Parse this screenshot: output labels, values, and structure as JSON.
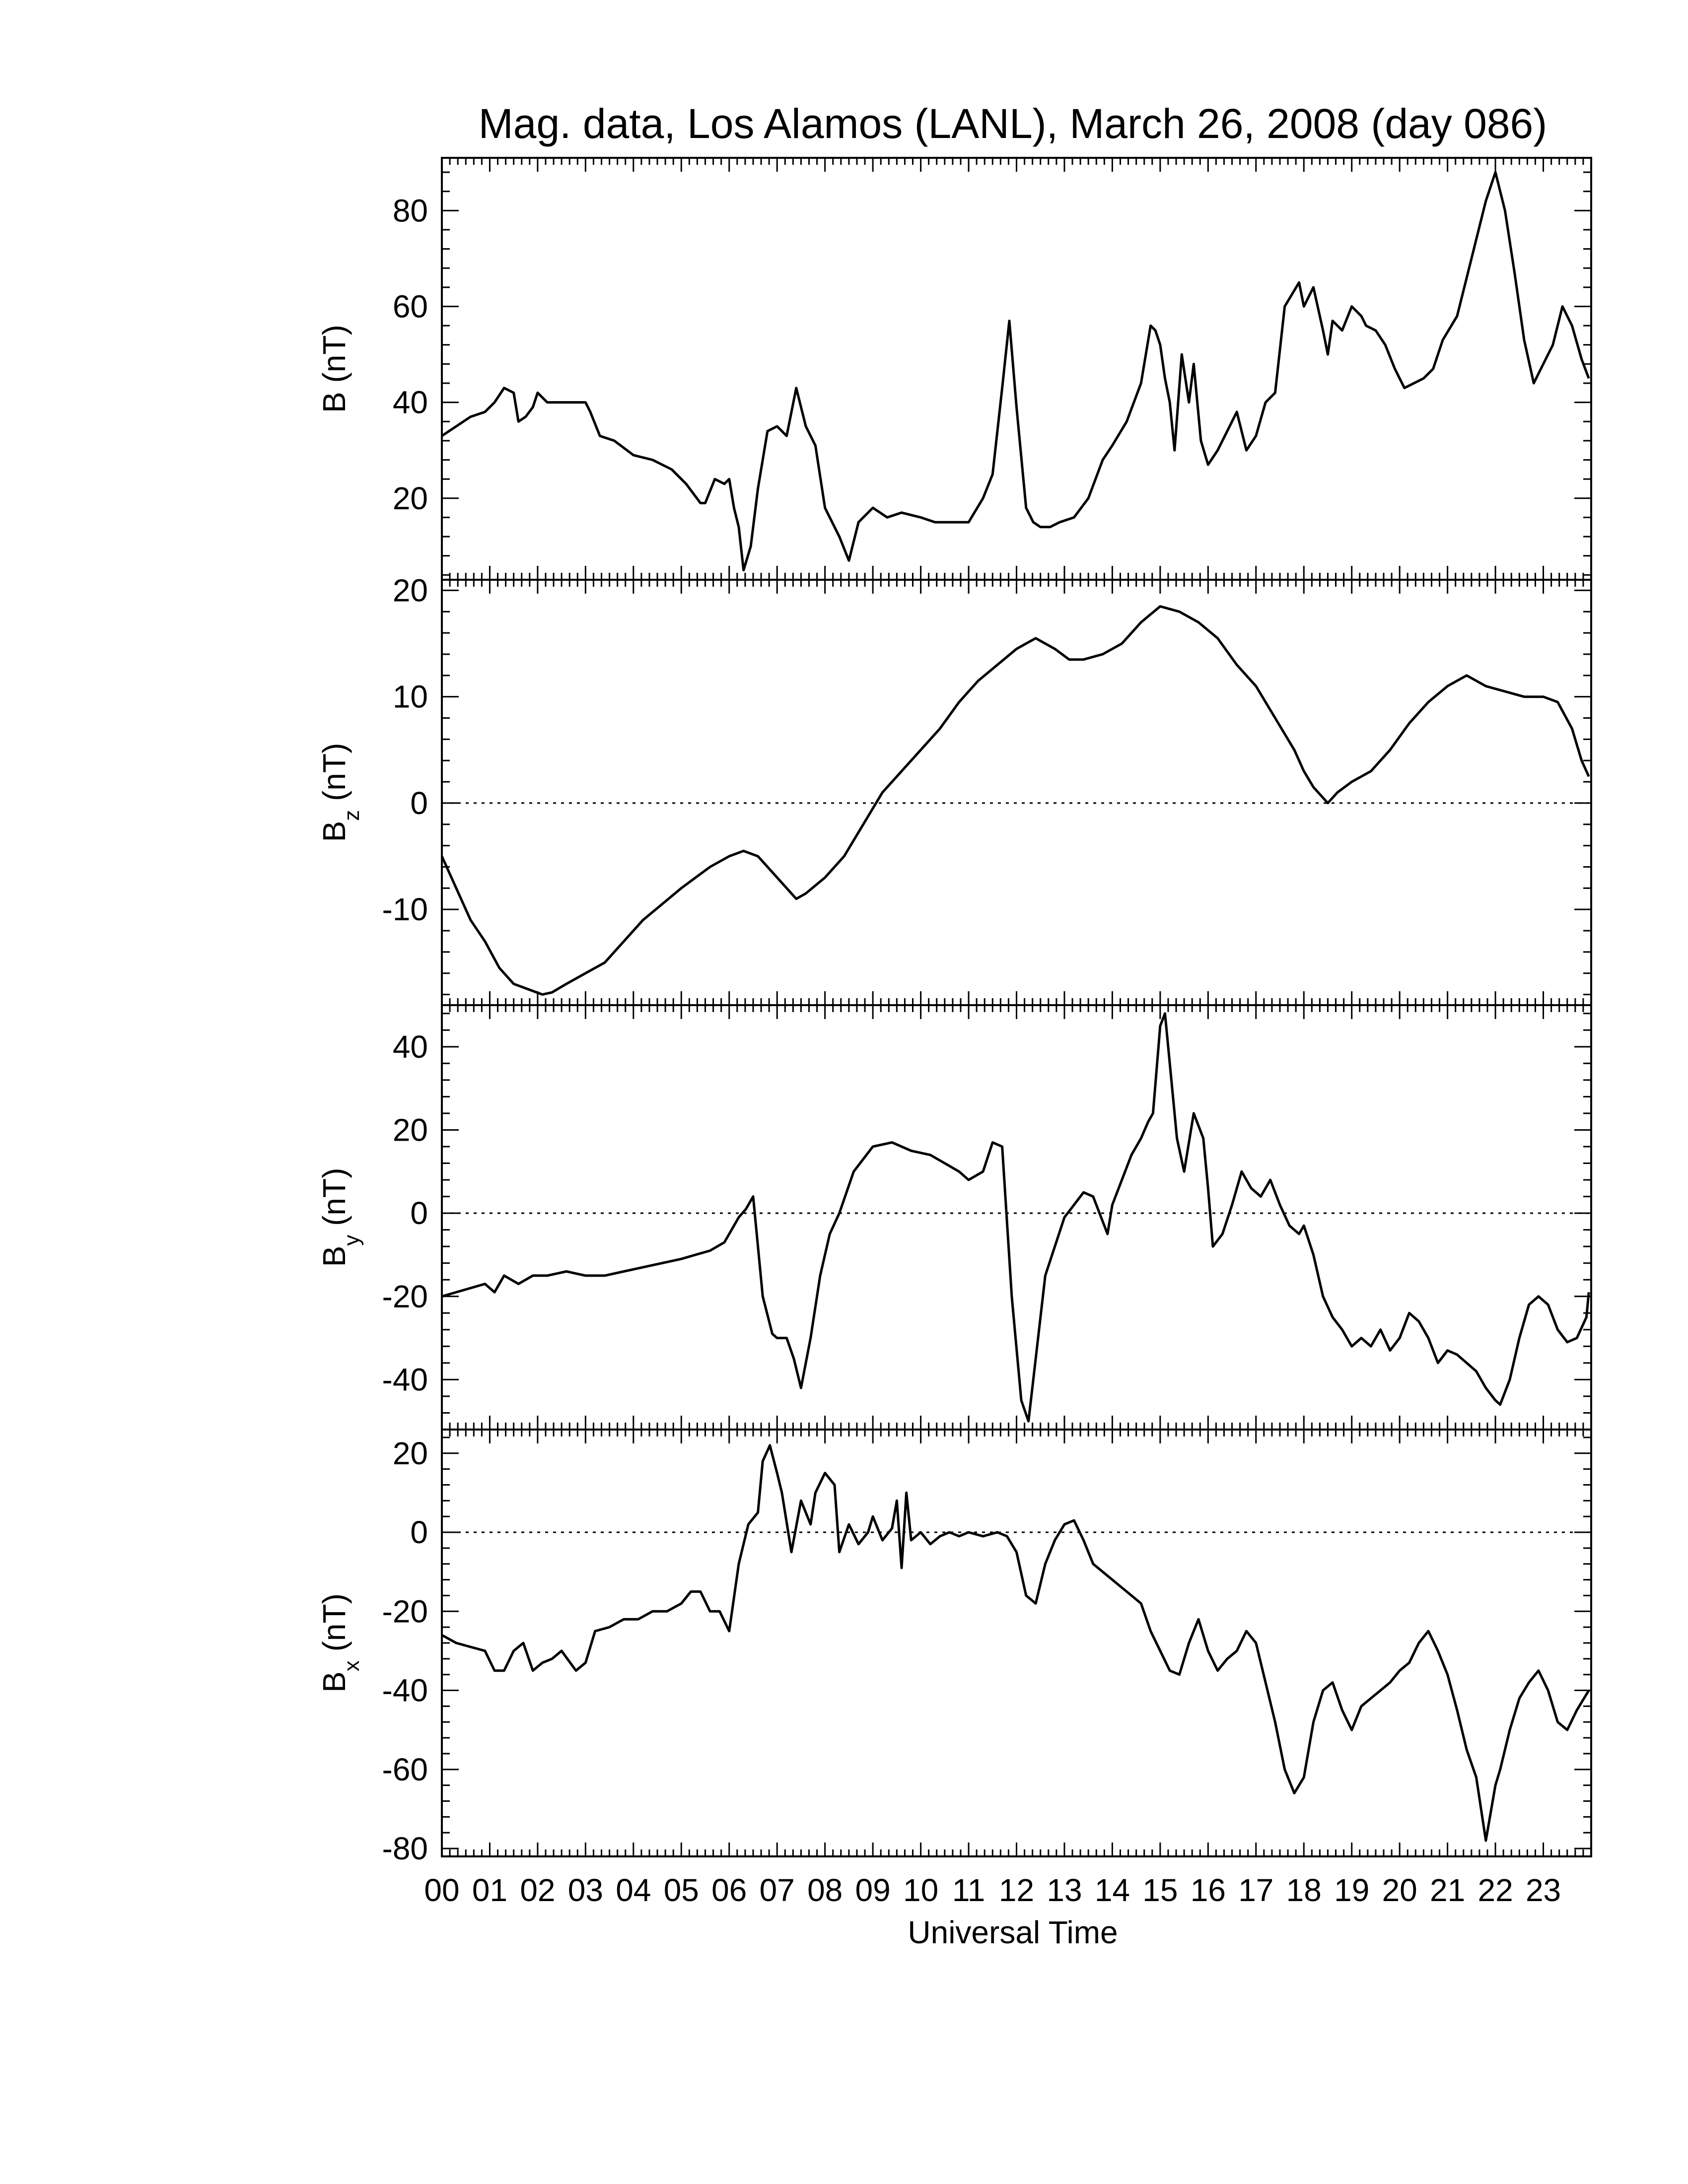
{
  "chart_data": {
    "type": "line",
    "title": "Mag. data, Los Alamos (LANL), March 26, 2008 (day 086)",
    "xlabel": "Universal Time",
    "x_tick_labels": [
      "00",
      "01",
      "02",
      "03",
      "04",
      "05",
      "06",
      "07",
      "08",
      "09",
      "10",
      "11",
      "12",
      "13",
      "14",
      "15",
      "16",
      "17",
      "18",
      "19",
      "20",
      "21",
      "22",
      "23"
    ],
    "xlim": [
      0,
      24
    ],
    "grid": false,
    "panels": [
      {
        "id": "B",
        "ylabel_main": "B (nT)",
        "ylabel_sub": "",
        "ylim": [
          3,
          91
        ],
        "yticks": [
          20,
          40,
          60,
          80
        ],
        "ytick_labels": [
          "20",
          "40",
          "60",
          "80"
        ],
        "zero_line": false,
        "series": [
          {
            "x": [
              0.0,
              0.3,
              0.6,
              0.9,
              1.1,
              1.3,
              1.5,
              1.6,
              1.75,
              1.9,
              2.0,
              2.2,
              2.5,
              2.8,
              3.0,
              3.1,
              3.3,
              3.6,
              4.0,
              4.4,
              4.8,
              5.1,
              5.4,
              5.5,
              5.7,
              5.9,
              6.0,
              6.1,
              6.2,
              6.3,
              6.45,
              6.6,
              6.8,
              7.0,
              7.2,
              7.4,
              7.6,
              7.8,
              8.0,
              8.3,
              8.5,
              8.7,
              9.0,
              9.3,
              9.6,
              10.0,
              10.3,
              10.6,
              11.0,
              11.3,
              11.5,
              11.7,
              11.85,
              12.0,
              12.2,
              12.35,
              12.5,
              12.7,
              12.9,
              13.2,
              13.5,
              13.8,
              14.0,
              14.3,
              14.6,
              14.8,
              14.9,
              15.0,
              15.1,
              15.2,
              15.3,
              15.45,
              15.6,
              15.7,
              15.85,
              16.0,
              16.2,
              16.4,
              16.6,
              16.8,
              17.0,
              17.2,
              17.4,
              17.6,
              17.9,
              18.0,
              18.2,
              18.4,
              18.5,
              18.6,
              18.8,
              19.0,
              19.2,
              19.3,
              19.5,
              19.7,
              19.9,
              20.1,
              20.3,
              20.5,
              20.7,
              20.9,
              21.2,
              21.5,
              21.8,
              22.0,
              22.2,
              22.4,
              22.6,
              22.8,
              23.0,
              23.2,
              23.4,
              23.6,
              23.8,
              23.95
            ],
            "y": [
              33,
              35,
              37,
              38,
              40,
              43,
              42,
              36,
              37,
              39,
              42,
              40,
              40,
              40,
              40,
              38,
              33,
              32,
              29,
              28,
              26,
              23,
              19,
              19,
              24,
              23,
              24,
              18,
              14,
              5,
              10,
              22,
              34,
              35,
              33,
              43,
              35,
              31,
              18,
              12,
              7,
              15,
              18,
              16,
              17,
              16,
              15,
              15,
              15,
              20,
              25,
              43,
              57,
              39,
              18,
              15,
              14,
              14,
              15,
              16,
              20,
              28,
              31,
              36,
              44,
              56,
              55,
              52,
              45,
              40,
              30,
              50,
              40,
              48,
              32,
              27,
              30,
              34,
              38,
              30,
              33,
              40,
              42,
              60,
              65,
              60,
              64,
              55,
              50,
              57,
              55,
              60,
              58,
              56,
              55,
              52,
              47,
              43,
              44,
              45,
              47,
              53,
              58,
              70,
              82,
              88,
              80,
              67,
              53,
              44,
              48,
              52,
              60,
              56,
              49,
              45
            ],
            "name": ""
          }
        ]
      },
      {
        "id": "Bz",
        "ylabel_main": "B",
        "ylabel_sub": "z",
        "ylabel_unit": "(nT)",
        "ylim": [
          -19,
          21
        ],
        "yticks": [
          -10,
          0,
          10,
          20
        ],
        "ytick_labels": [
          "-10",
          "0",
          "10",
          "20"
        ],
        "zero_line": true,
        "series": [
          {
            "x": [
              0.0,
              0.3,
              0.6,
              0.9,
              1.2,
              1.5,
              1.8,
              2.1,
              2.3,
              2.6,
              3.0,
              3.4,
              3.8,
              4.2,
              4.6,
              5.0,
              5.3,
              5.6,
              6.0,
              6.3,
              6.6,
              6.9,
              7.2,
              7.4,
              7.6,
              8.0,
              8.4,
              8.8,
              9.2,
              9.6,
              10.0,
              10.4,
              10.8,
              11.2,
              11.6,
              12.0,
              12.4,
              12.8,
              13.1,
              13.4,
              13.8,
              14.2,
              14.6,
              15.0,
              15.4,
              15.8,
              16.2,
              16.6,
              17.0,
              17.4,
              17.8,
              18.0,
              18.2,
              18.5,
              18.7,
              19.0,
              19.4,
              19.8,
              20.2,
              20.6,
              21.0,
              21.4,
              21.8,
              22.2,
              22.6,
              23.0,
              23.3,
              23.6,
              23.8,
              23.95
            ],
            "y": [
              -5,
              -8,
              -11,
              -13,
              -15.5,
              -17,
              -17.5,
              -18,
              -17.8,
              -17,
              -16,
              -15,
              -13,
              -11,
              -9.5,
              -8,
              -7,
              -6,
              -5,
              -4.5,
              -5,
              -6.5,
              -8,
              -9,
              -8.5,
              -7,
              -5,
              -2,
              1,
              3,
              5,
              7,
              9.5,
              11.5,
              13,
              14.5,
              15.5,
              14.5,
              13.5,
              13.5,
              14,
              15,
              17,
              18.5,
              18,
              17,
              15.5,
              13,
              11,
              8,
              5,
              3,
              1.5,
              0,
              1,
              2,
              3,
              5,
              7.5,
              9.5,
              11,
              12,
              11,
              10.5,
              10,
              10,
              9.5,
              7,
              4,
              2.5
            ],
            "name": ""
          }
        ]
      },
      {
        "id": "By",
        "ylabel_main": "B",
        "ylabel_sub": "y",
        "ylabel_unit": "(nT)",
        "ylim": [
          -52,
          50
        ],
        "yticks": [
          -40,
          -20,
          0,
          20,
          40
        ],
        "ytick_labels": [
          "-40",
          "-20",
          "0",
          "20",
          "40"
        ],
        "zero_line": true,
        "series": [
          {
            "x": [
              0.0,
              0.3,
              0.6,
              0.9,
              1.1,
              1.3,
              1.6,
              1.9,
              2.2,
              2.6,
              3.0,
              3.4,
              3.8,
              4.2,
              4.6,
              5.0,
              5.3,
              5.6,
              5.9,
              6.0,
              6.2,
              6.35,
              6.5,
              6.7,
              6.9,
              7.0,
              7.2,
              7.35,
              7.5,
              7.7,
              7.9,
              8.1,
              8.3,
              8.6,
              9.0,
              9.4,
              9.8,
              10.2,
              10.5,
              10.8,
              11.0,
              11.3,
              11.5,
              11.7,
              11.9,
              12.1,
              12.25,
              12.4,
              12.6,
              12.8,
              13.0,
              13.2,
              13.4,
              13.6,
              13.8,
              13.9,
              14.0,
              14.2,
              14.4,
              14.6,
              14.75,
              14.85,
              15.0,
              15.1,
              15.25,
              15.35,
              15.5,
              15.7,
              15.9,
              16.0,
              16.1,
              16.3,
              16.5,
              16.7,
              16.9,
              17.1,
              17.3,
              17.5,
              17.7,
              17.9,
              18.0,
              18.2,
              18.4,
              18.6,
              18.8,
              19.0,
              19.2,
              19.4,
              19.6,
              19.8,
              20.0,
              20.2,
              20.4,
              20.6,
              20.8,
              21.0,
              21.2,
              21.4,
              21.6,
              21.8,
              22.0,
              22.1,
              22.3,
              22.5,
              22.7,
              22.9,
              23.1,
              23.3,
              23.5,
              23.7,
              23.9,
              23.95
            ],
            "y": [
              -20,
              -19,
              -18,
              -17,
              -19,
              -15,
              -17,
              -15,
              -15,
              -14,
              -15,
              -15,
              -14,
              -13,
              -12,
              -11,
              -10,
              -9,
              -7,
              -5,
              -1,
              1,
              4,
              -20,
              -29,
              -30,
              -30,
              -35,
              -42,
              -30,
              -15,
              -5,
              0,
              10,
              16,
              17,
              15,
              14,
              12,
              10,
              8,
              10,
              17,
              16,
              -20,
              -45,
              -50,
              -35,
              -15,
              -8,
              -1,
              2,
              5,
              4,
              -2,
              -5,
              2,
              8,
              14,
              18,
              22,
              24,
              45,
              48,
              30,
              18,
              10,
              24,
              18,
              6,
              -8,
              -5,
              2,
              10,
              6,
              4,
              8,
              2,
              -3,
              -5,
              -3,
              -10,
              -20,
              -25,
              -28,
              -32,
              -30,
              -32,
              -28,
              -33,
              -30,
              -24,
              -26,
              -30,
              -36,
              -33,
              -34,
              -36,
              -38,
              -42,
              -45,
              -46,
              -40,
              -30,
              -22,
              -20,
              -22,
              -28,
              -31,
              -30,
              -25,
              -19
            ],
            "name": ""
          }
        ]
      },
      {
        "id": "Bx",
        "ylabel_main": "B",
        "ylabel_sub": "x",
        "ylabel_unit": "(nT)",
        "ylim": [
          -82,
          26
        ],
        "yticks": [
          -80,
          -60,
          -40,
          -20,
          0,
          20
        ],
        "ytick_labels": [
          "-80",
          "-60",
          "-40",
          "-20",
          "0",
          "20"
        ],
        "zero_line": true,
        "series": [
          {
            "x": [
              0.0,
              0.3,
              0.6,
              0.9,
              1.1,
              1.3,
              1.5,
              1.7,
              1.9,
              2.1,
              2.3,
              2.5,
              2.8,
              3.0,
              3.2,
              3.5,
              3.8,
              4.1,
              4.4,
              4.7,
              5.0,
              5.2,
              5.4,
              5.6,
              5.8,
              6.0,
              6.2,
              6.4,
              6.6,
              6.7,
              6.85,
              7.0,
              7.1,
              7.3,
              7.5,
              7.7,
              7.8,
              8.0,
              8.2,
              8.3,
              8.5,
              8.7,
              8.9,
              9.0,
              9.2,
              9.4,
              9.5,
              9.6,
              9.7,
              9.8,
              10.0,
              10.2,
              10.4,
              10.6,
              10.8,
              11.0,
              11.3,
              11.6,
              11.8,
              12.0,
              12.2,
              12.4,
              12.6,
              12.8,
              13.0,
              13.2,
              13.4,
              13.6,
              13.8,
              14.0,
              14.2,
              14.4,
              14.6,
              14.8,
              15.0,
              15.2,
              15.4,
              15.6,
              15.8,
              16.0,
              16.2,
              16.4,
              16.6,
              16.8,
              17.0,
              17.2,
              17.4,
              17.6,
              17.8,
              18.0,
              18.2,
              18.4,
              18.6,
              18.8,
              19.0,
              19.2,
              19.4,
              19.6,
              19.8,
              20.0,
              20.2,
              20.4,
              20.6,
              20.8,
              21.0,
              21.2,
              21.4,
              21.6,
              21.8,
              22.0,
              22.1,
              22.3,
              22.5,
              22.7,
              22.9,
              23.1,
              23.3,
              23.5,
              23.7,
              23.95
            ],
            "y": [
              -26,
              -28,
              -29,
              -30,
              -35,
              -35,
              -30,
              -28,
              -35,
              -33,
              -32,
              -30,
              -35,
              -33,
              -25,
              -24,
              -22,
              -22,
              -20,
              -20,
              -18,
              -15,
              -15,
              -20,
              -20,
              -25,
              -8,
              2,
              5,
              18,
              22,
              15,
              10,
              -5,
              8,
              2,
              10,
              15,
              12,
              -5,
              2,
              -3,
              0,
              4,
              -2,
              1,
              8,
              -9,
              10,
              -2,
              0,
              -3,
              -1,
              0,
              -1,
              0,
              -1,
              0,
              -1,
              -5,
              -16,
              -18,
              -8,
              -2,
              2,
              3,
              -2,
              -8,
              -10,
              -12,
              -14,
              -16,
              -18,
              -25,
              -30,
              -35,
              -36,
              -28,
              -22,
              -30,
              -35,
              -32,
              -30,
              -25,
              -28,
              -38,
              -48,
              -60,
              -66,
              -62,
              -48,
              -40,
              -38,
              -45,
              -50,
              -44,
              -42,
              -40,
              -38,
              -35,
              -33,
              -28,
              -25,
              -30,
              -36,
              -45,
              -55,
              -62,
              -78,
              -64,
              -60,
              -50,
              -42,
              -38,
              -35,
              -40,
              -48,
              -50,
              -45,
              -40
            ],
            "name": ""
          }
        ]
      }
    ]
  }
}
